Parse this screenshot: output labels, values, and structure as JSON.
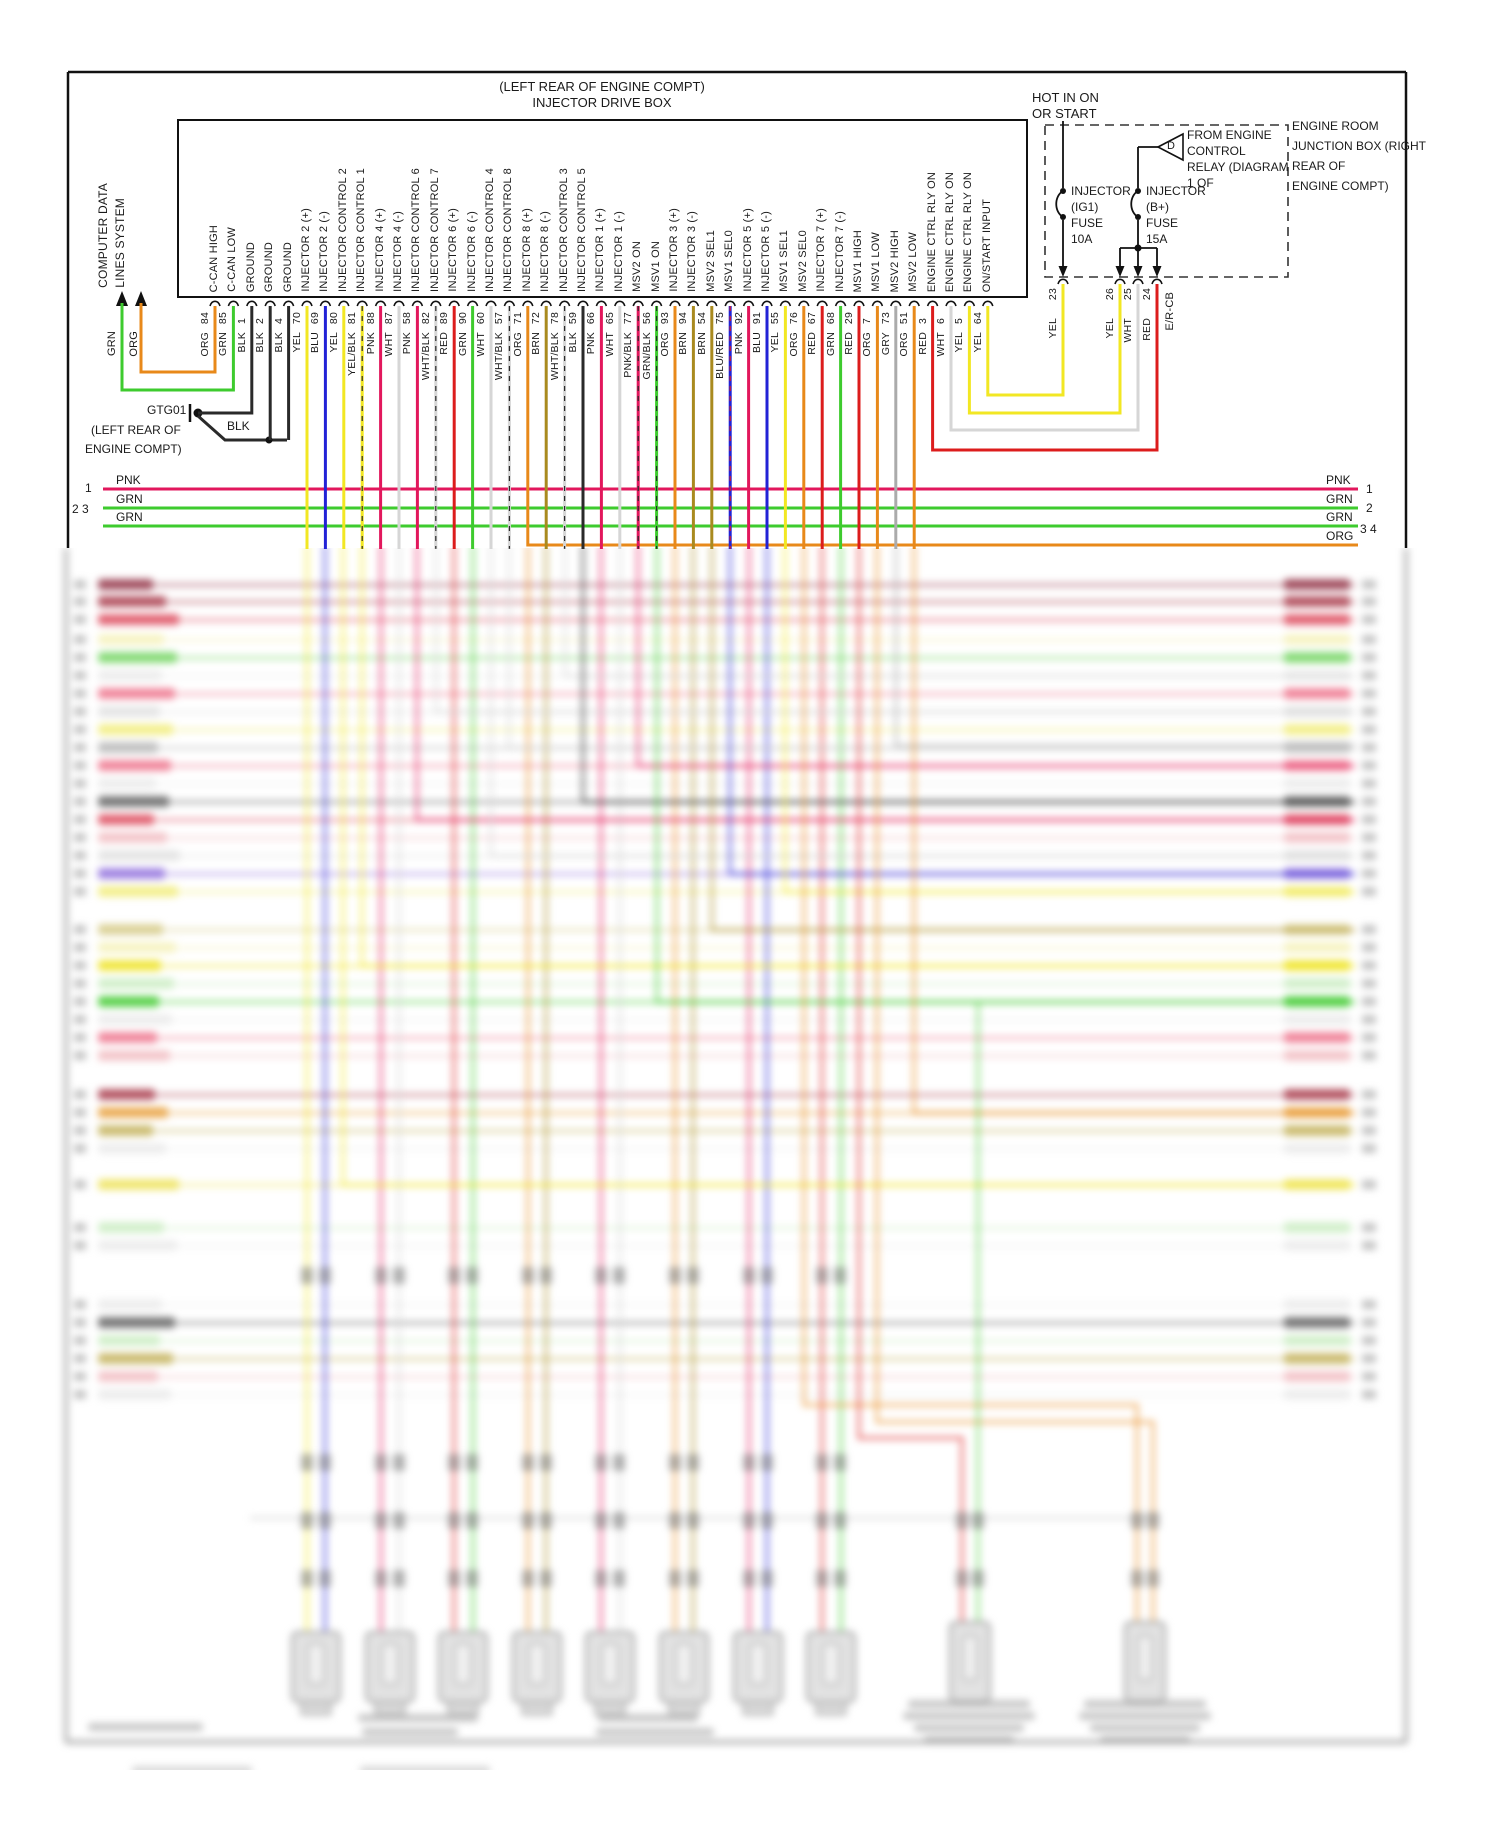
{
  "diagram": {
    "title_line1": "(LEFT REAR OF ENGINE COMPT)",
    "title_line2": "INJECTOR DRIVE BOX",
    "computer_data": {
      "line1": "COMPUTER DATA",
      "line2": "LINES SYSTEM",
      "wire1_color": "GRN",
      "wire2_color": "ORG"
    },
    "ground": {
      "id": "GTG01",
      "loc1": "(LEFT REAR OF",
      "loc2": "ENGINE COMPT)",
      "wire_color": "BLK"
    },
    "drive_box_pins": [
      {
        "label": "C-CAN HIGH",
        "pin": "84",
        "color": "ORG"
      },
      {
        "label": "C-CAN LOW",
        "pin": "85",
        "color": "GRN"
      },
      {
        "label": "GROUND",
        "pin": "1",
        "color": "BLK"
      },
      {
        "label": "GROUND",
        "pin": "2",
        "color": "BLK"
      },
      {
        "label": "GROUND",
        "pin": "4",
        "color": "BLK"
      },
      {
        "label": "INJECTOR 2 (+)",
        "pin": "70",
        "color": "YEL"
      },
      {
        "label": "INJECTOR 2 (-)",
        "pin": "69",
        "color": "BLU"
      },
      {
        "label": "INJECTOR CONTROL 2",
        "pin": "80",
        "color": "YEL"
      },
      {
        "label": "INJECTOR CONTROL 1",
        "pin": "81",
        "color": "YEL/BLK"
      },
      {
        "label": "INJECTOR 4 (+)",
        "pin": "88",
        "color": "PNK"
      },
      {
        "label": "INJECTOR 4 (-)",
        "pin": "87",
        "color": "WHT"
      },
      {
        "label": "INJECTOR CONTROL 6",
        "pin": "58",
        "color": "PNK"
      },
      {
        "label": "INJECTOR CONTROL 7",
        "pin": "82",
        "color": "WHT/BLK"
      },
      {
        "label": "INJECTOR 6 (+)",
        "pin": "89",
        "color": "RED"
      },
      {
        "label": "INJECTOR 6 (-)",
        "pin": "90",
        "color": "GRN"
      },
      {
        "label": "INJECTOR CONTROL 4",
        "pin": "60",
        "color": "WHT"
      },
      {
        "label": "INJECTOR CONTROL 8",
        "pin": "57",
        "color": "WHT/BLK"
      },
      {
        "label": "INJECTOR 8 (+)",
        "pin": "71",
        "color": "ORG"
      },
      {
        "label": "INJECTOR 8 (-)",
        "pin": "72",
        "color": "BRN"
      },
      {
        "label": "INJECTOR CONTROL 3",
        "pin": "78",
        "color": "WHT/BLK"
      },
      {
        "label": "INJECTOR CONTROL 5",
        "pin": "59",
        "color": "BLK"
      },
      {
        "label": "INJECTOR 1 (+)",
        "pin": "66",
        "color": "PNK"
      },
      {
        "label": "INJECTOR 1 (-)",
        "pin": "65",
        "color": "WHT"
      },
      {
        "label": "MSV2 ON",
        "pin": "77",
        "color": "PNK/BLK"
      },
      {
        "label": "MSV1 ON",
        "pin": "56",
        "color": "GRN/BLK"
      },
      {
        "label": "INJECTOR 3 (+)",
        "pin": "93",
        "color": "ORG"
      },
      {
        "label": "INJECTOR 3 (-)",
        "pin": "94",
        "color": "BRN"
      },
      {
        "label": "MSV2 SEL1",
        "pin": "54",
        "color": "BRN"
      },
      {
        "label": "MSV1 SEL0",
        "pin": "75",
        "color": "BLU/RED"
      },
      {
        "label": "INJECTOR 5 (+)",
        "pin": "92",
        "color": "PNK"
      },
      {
        "label": "INJECTOR 5 (-)",
        "pin": "91",
        "color": "BLU"
      },
      {
        "label": "MSV1 SEL1",
        "pin": "55",
        "color": "YEL"
      },
      {
        "label": "MSV2 SEL0",
        "pin": "76",
        "color": "ORG"
      },
      {
        "label": "INJECTOR 7 (+)",
        "pin": "67",
        "color": "RED"
      },
      {
        "label": "INJECTOR 7 (-)",
        "pin": "68",
        "color": "GRN"
      },
      {
        "label": "MSV1 HIGH",
        "pin": "29",
        "color": "RED"
      },
      {
        "label": "MSV1 LOW",
        "pin": "7",
        "color": "ORG"
      },
      {
        "label": "MSV2 HIGH",
        "pin": "73",
        "color": "GRY"
      },
      {
        "label": "MSV2 LOW",
        "pin": "51",
        "color": "ORG"
      },
      {
        "label": "ENGINE CTRL RLY ON",
        "pin": "3",
        "color": "RED"
      },
      {
        "label": "ENGINE CTRL RLY ON",
        "pin": "6",
        "color": "WHT"
      },
      {
        "label": "ENGINE CTRL RLY ON",
        "pin": "5",
        "color": "YEL"
      },
      {
        "label": "ON/START INPUT",
        "pin": "64",
        "color": "YEL"
      }
    ],
    "bus_rows": [
      {
        "left_num": "1",
        "color": "PNK",
        "right_num": "1"
      },
      {
        "left_num": "2 3",
        "color": "GRN",
        "right_num": "2"
      },
      {
        "left_num": "",
        "color": "GRN",
        "right_num": "3 4"
      },
      {
        "left_num": "",
        "color": "ORG",
        "right_num": ""
      }
    ],
    "junction": {
      "hot_line1": "HOT IN ON",
      "hot_line2": "OR START",
      "fuse1": [
        "INJECTOR",
        "(IG1)",
        "FUSE",
        "10A"
      ],
      "fuse2": [
        "INJECTOR",
        "(B+)",
        "FUSE",
        "15A"
      ],
      "relay_note": [
        "FROM ENGINE",
        "CONTROL",
        "RELAY (DIAGRAM",
        "1 OF"
      ],
      "relay_letter": "D",
      "box_note": [
        "ENGINE ROOM",
        "JUNCTION BOX (RIGHT",
        "REAR OF",
        "ENGINE COMPT)"
      ],
      "pins": [
        {
          "pin": "23",
          "color": "YEL"
        },
        {
          "pin": "26",
          "color": "YEL"
        },
        {
          "pin": "25",
          "color": "WHT"
        },
        {
          "pin": "24",
          "color": "RED"
        }
      ],
      "terminal": "E/R-CB"
    },
    "colors": {
      "ORG": "#e8891a",
      "GRN": "#3ecb2e",
      "BLK": "#2a2a2a",
      "YEL": "#f2e723",
      "BLU": "#2222d6",
      "PNK": "#e2175c",
      "WHT": "#d6d6d6",
      "RED": "#dc1c1c",
      "BRN": "#a98a1f",
      "GRY": "#ababab"
    }
  }
}
